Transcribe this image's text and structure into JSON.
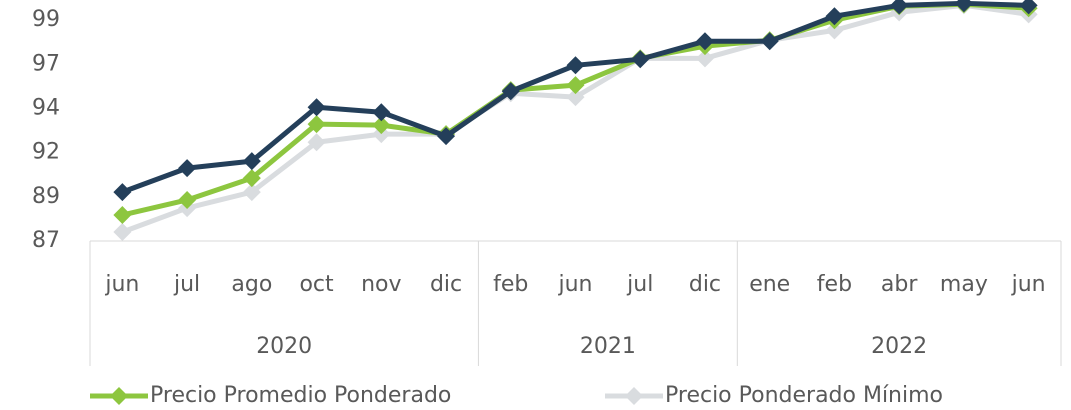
{
  "chart_data": {
    "type": "line",
    "groups": [
      {
        "name": "2020",
        "categories": [
          "jun",
          "jul",
          "ago",
          "oct",
          "nov",
          "dic"
        ]
      },
      {
        "name": "2021",
        "categories": [
          "feb",
          "jun",
          "jul",
          "dic"
        ]
      },
      {
        "name": "2022",
        "categories": [
          "ene",
          "feb",
          "abr",
          "may",
          "jun"
        ]
      }
    ],
    "series": [
      {
        "name": "Precio Ponderado Mínimo",
        "color": "#d9dcdf",
        "values": [
          87.49,
          88.79,
          89.66,
          92.37,
          92.81,
          92.81,
          95.03,
          94.82,
          96.93,
          96.93,
          97.91,
          98.45,
          99.43,
          99.81,
          99.32
        ]
      },
      {
        "name": "Precio Promedio Ponderado",
        "color": "#8dc63f",
        "values": [
          88.41,
          89.23,
          90.42,
          93.35,
          93.3,
          92.81,
          95.2,
          95.47,
          96.93,
          97.59,
          97.91,
          99.0,
          99.76,
          99.87,
          99.65
        ]
      },
      {
        "color": "#243f5a",
        "values": [
          89.66,
          90.96,
          91.34,
          94.27,
          94.0,
          92.7,
          95.14,
          96.55,
          96.88,
          97.86,
          97.86,
          99.22,
          99.81,
          99.92,
          99.81
        ]
      }
    ],
    "legend_order": [
      1,
      0
    ],
    "ylim": [
      87,
      100.1
    ],
    "yticks": [
      87,
      {
        "value": 89.4,
        "label": "89"
      },
      {
        "value": 91.8,
        "label": "92"
      },
      {
        "value": 94.2,
        "label": "94"
      },
      {
        "value": 96.6,
        "label": "97"
      },
      99
    ]
  }
}
